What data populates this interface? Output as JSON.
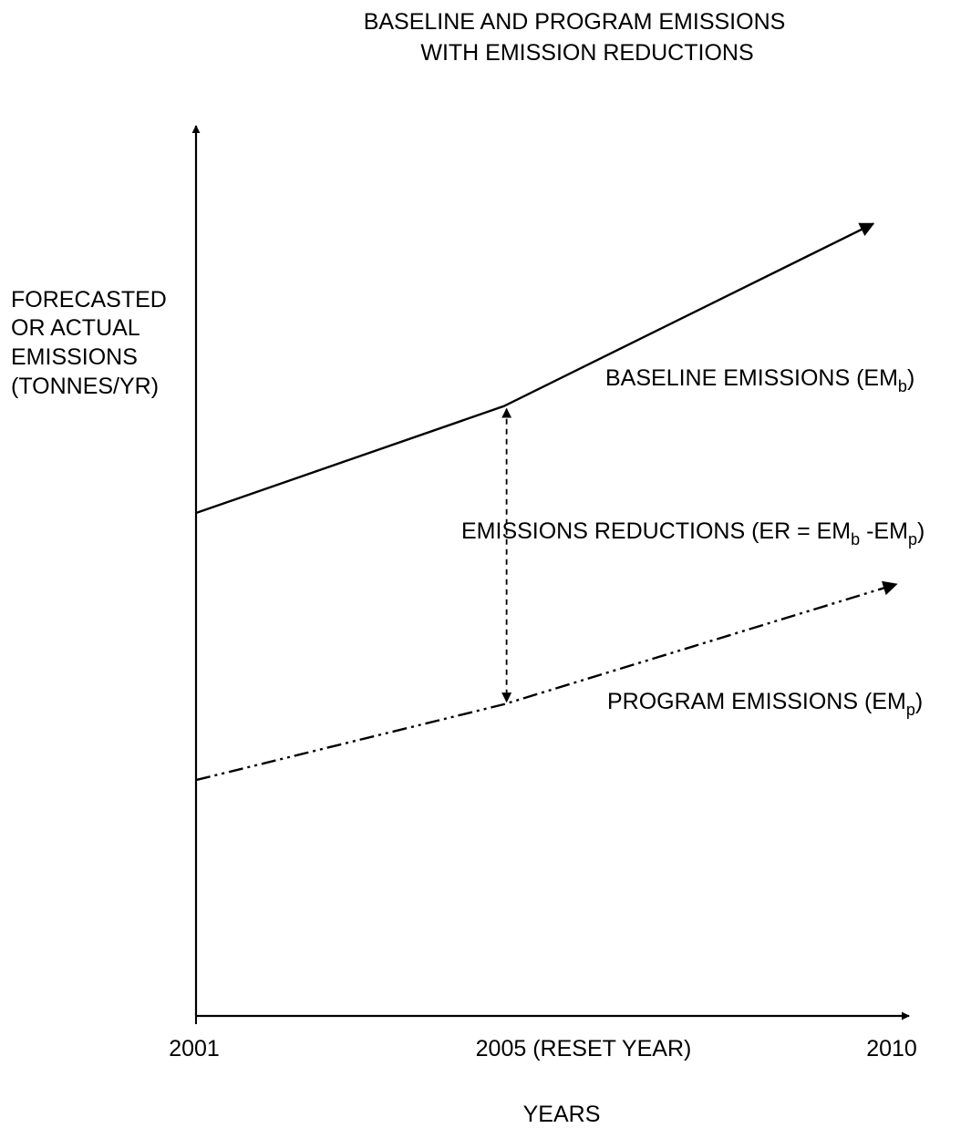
{
  "chart_data": {
    "type": "line",
    "title": [
      "BASELINE AND PROGRAM EMISSIONS",
      "WITH EMISSION REDUCTIONS"
    ],
    "ylabel": [
      "FORECASTED",
      "OR ACTUAL",
      "EMISSIONS",
      "(TONNES/YR)"
    ],
    "xlabel": "YEARS",
    "x_ticks": [
      {
        "value": 2001,
        "label": "2001"
      },
      {
        "value": 2005,
        "label": "2005 (RESET YEAR)"
      },
      {
        "value": 2010,
        "label": "2010"
      }
    ],
    "xlim": [
      2001,
      2010.3
    ],
    "ylim": [
      0,
      100
    ],
    "grid": false,
    "y_values_note": "",
    "series": [
      {
        "key": "baseline",
        "style": "solid",
        "x": [
          2001,
          2005,
          2009.8
        ],
        "y": [
          56.5,
          68.5,
          89
        ],
        "label": {
          "main": "BASELINE EMISSIONS (EM",
          "sub": "b",
          "end": ")"
        }
      },
      {
        "key": "program",
        "style": "dash-dot",
        "x": [
          2001,
          2005,
          2010.1
        ],
        "y": [
          26.5,
          35.0,
          48.5
        ],
        "label": {
          "main": "PROGRAM EMISSIONS (EM",
          "sub": "p",
          "end": ")"
        }
      }
    ],
    "annotation": {
      "x": 2005,
      "from_series": "program",
      "to_series": "baseline",
      "label": {
        "p1": "EMISSIONS REDUCTIONS (ER = EM",
        "s1": "b",
        "p2": " -EM",
        "s2": "p",
        "end": ")"
      }
    }
  }
}
